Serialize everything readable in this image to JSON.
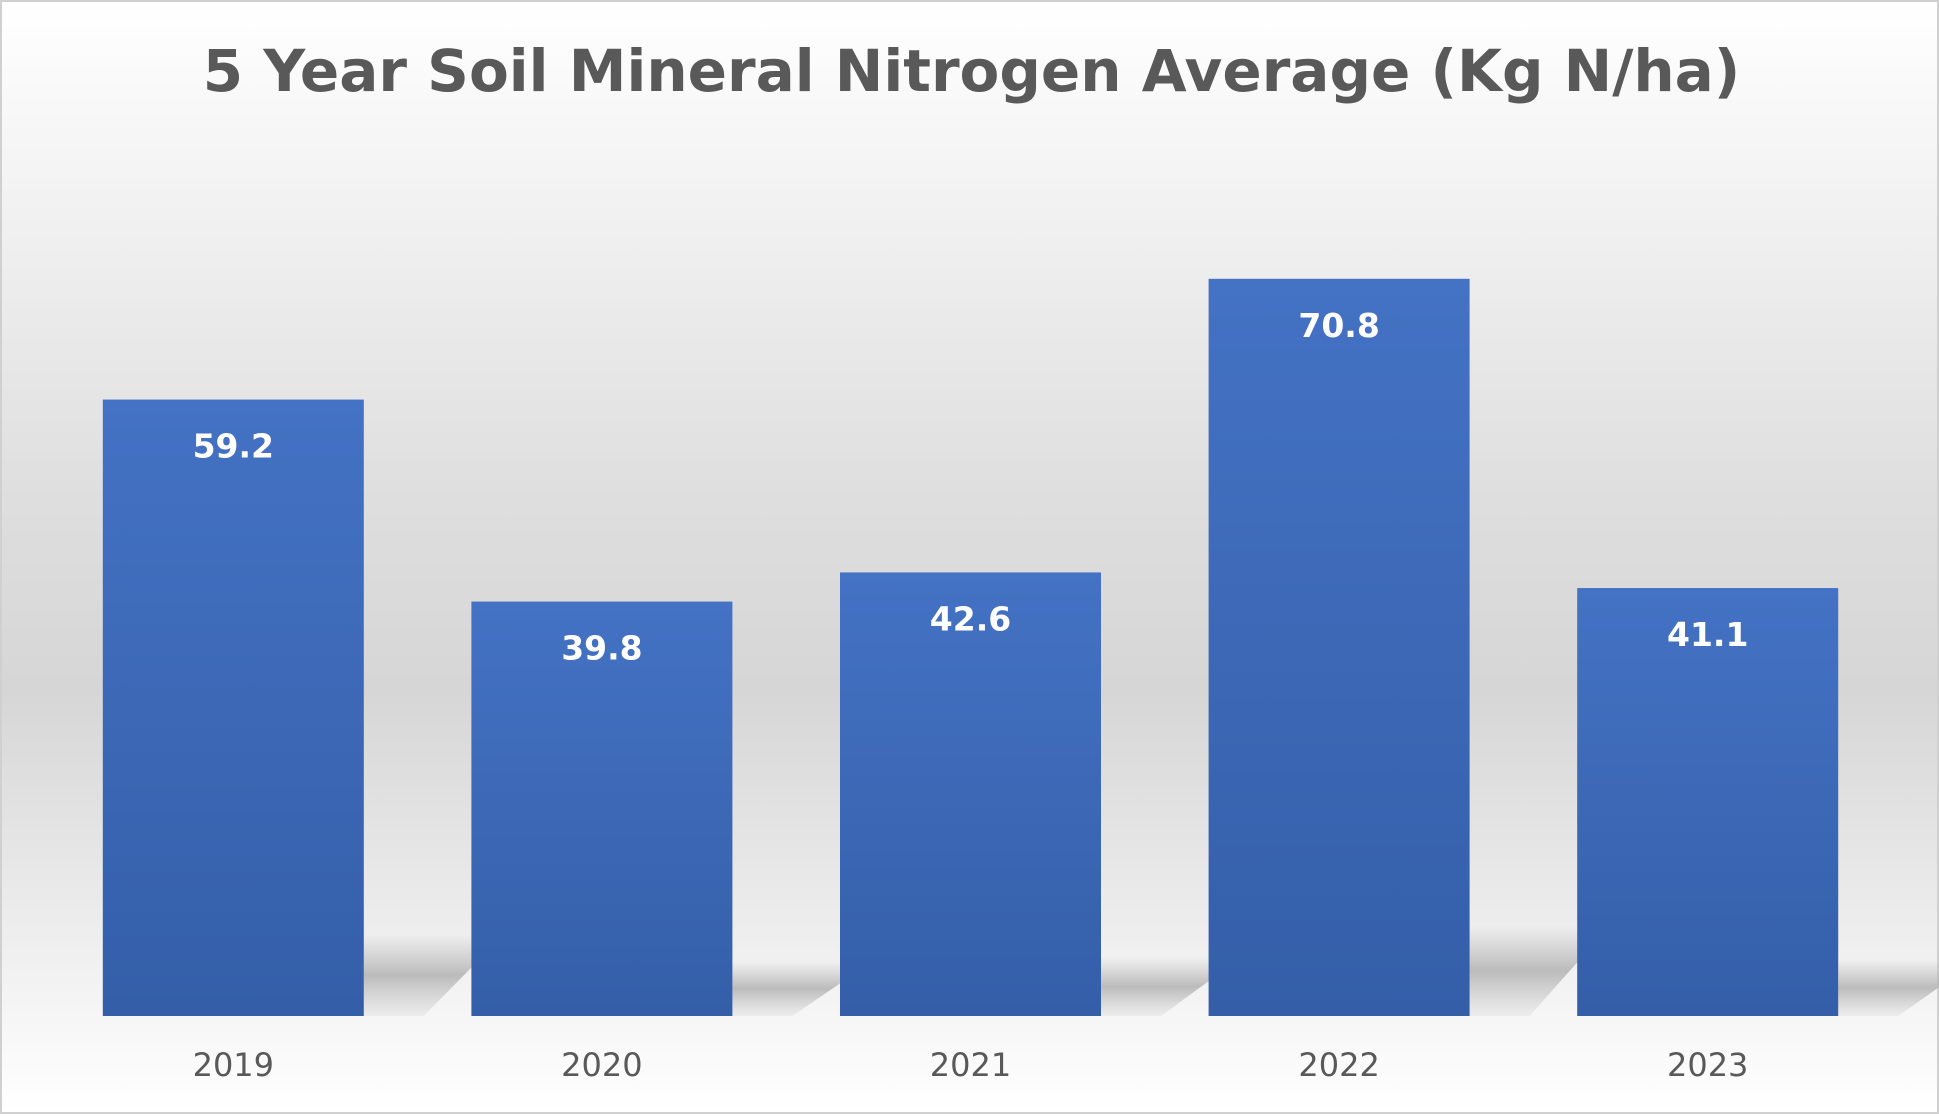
{
  "chart_data": {
    "type": "bar",
    "title": "5 Year Soil Mineral Nitrogen Average (Kg N/ha)",
    "categories": [
      "2019",
      "2020",
      "2021",
      "2022",
      "2023"
    ],
    "values": [
      59.2,
      39.8,
      42.6,
      70.8,
      41.1
    ],
    "data_labels": [
      "59.2",
      "39.8",
      "42.6",
      "70.8",
      "41.1"
    ],
    "xlabel": "",
    "ylabel": "",
    "ylim": [
      0,
      80
    ],
    "grid": false,
    "legend": "none",
    "bar_color": "#4472C4"
  }
}
